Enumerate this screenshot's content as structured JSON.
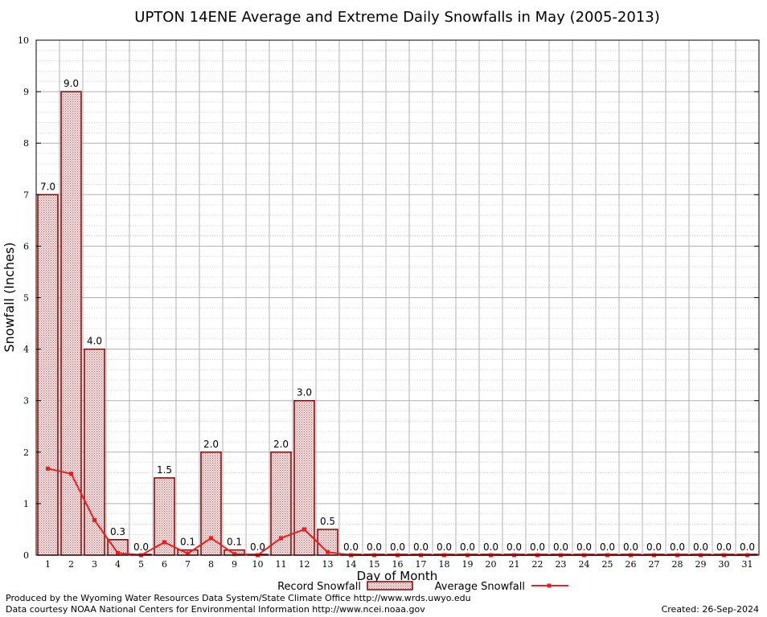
{
  "chart_data": {
    "type": "bar",
    "title": "UPTON 14ENE Average and Extreme Daily Snowfalls in May (2005-2013)",
    "xlabel": "Day of Month",
    "ylabel": "Snowfall (Inches)",
    "ylim": [
      0,
      10
    ],
    "yticks": [
      "0",
      "1",
      "2",
      "3",
      "4",
      "5",
      "6",
      "7",
      "8",
      "9",
      "10"
    ],
    "categories": [
      "1",
      "2",
      "3",
      "4",
      "5",
      "6",
      "7",
      "8",
      "9",
      "10",
      "11",
      "12",
      "13",
      "14",
      "15",
      "16",
      "17",
      "18",
      "19",
      "20",
      "21",
      "22",
      "23",
      "24",
      "25",
      "26",
      "27",
      "28",
      "29",
      "30",
      "31"
    ],
    "series": [
      {
        "name": "Record Snowfall",
        "type": "bar",
        "values": [
          7.0,
          9.0,
          4.0,
          0.3,
          0.0,
          1.5,
          0.1,
          2.0,
          0.1,
          0.0,
          2.0,
          3.0,
          0.5,
          0.0,
          0.0,
          0.0,
          0.0,
          0.0,
          0.0,
          0.0,
          0.0,
          0.0,
          0.0,
          0.0,
          0.0,
          0.0,
          0.0,
          0.0,
          0.0,
          0.0,
          0.0
        ],
        "labels": [
          "7.0",
          "9.0",
          "4.0",
          "0.3",
          "0.0",
          "1.5",
          "0.1",
          "2.0",
          "0.1",
          "0.0",
          "2.0",
          "3.0",
          "0.5",
          "0.0",
          "0.0",
          "0.0",
          "0.0",
          "0.0",
          "0.0",
          "0.0",
          "0.0",
          "0.0",
          "0.0",
          "0.0",
          "0.0",
          "0.0",
          "0.0",
          "0.0",
          "0.0",
          "0.0",
          "0.0"
        ]
      },
      {
        "name": "Average Snowfall",
        "type": "line",
        "values": [
          1.68,
          1.58,
          0.68,
          0.04,
          0.0,
          0.25,
          0.03,
          0.33,
          0.02,
          0.0,
          0.33,
          0.5,
          0.06,
          0.0,
          0.0,
          0.0,
          0.0,
          0.0,
          0.0,
          0.0,
          0.0,
          0.0,
          0.0,
          0.0,
          0.0,
          0.0,
          0.0,
          0.0,
          0.0,
          0.0,
          0.0
        ]
      }
    ],
    "grid": true,
    "legend": "bottom",
    "colors": {
      "bar_stroke": "#8b0000",
      "bar_fill": "#e8c8c8",
      "line": "#ee1c1c",
      "grid": "#b0b0b0"
    }
  },
  "footer": {
    "produced_by": "Produced by the Wyoming Water Resources Data System/State Climate Office http://www.wrds.uwyo.edu",
    "data_courtesy": "Data courtesy NOAA National Centers for Environmental Information http://www.ncei.noaa.gov",
    "created": "Created:  26-Sep-2024"
  }
}
